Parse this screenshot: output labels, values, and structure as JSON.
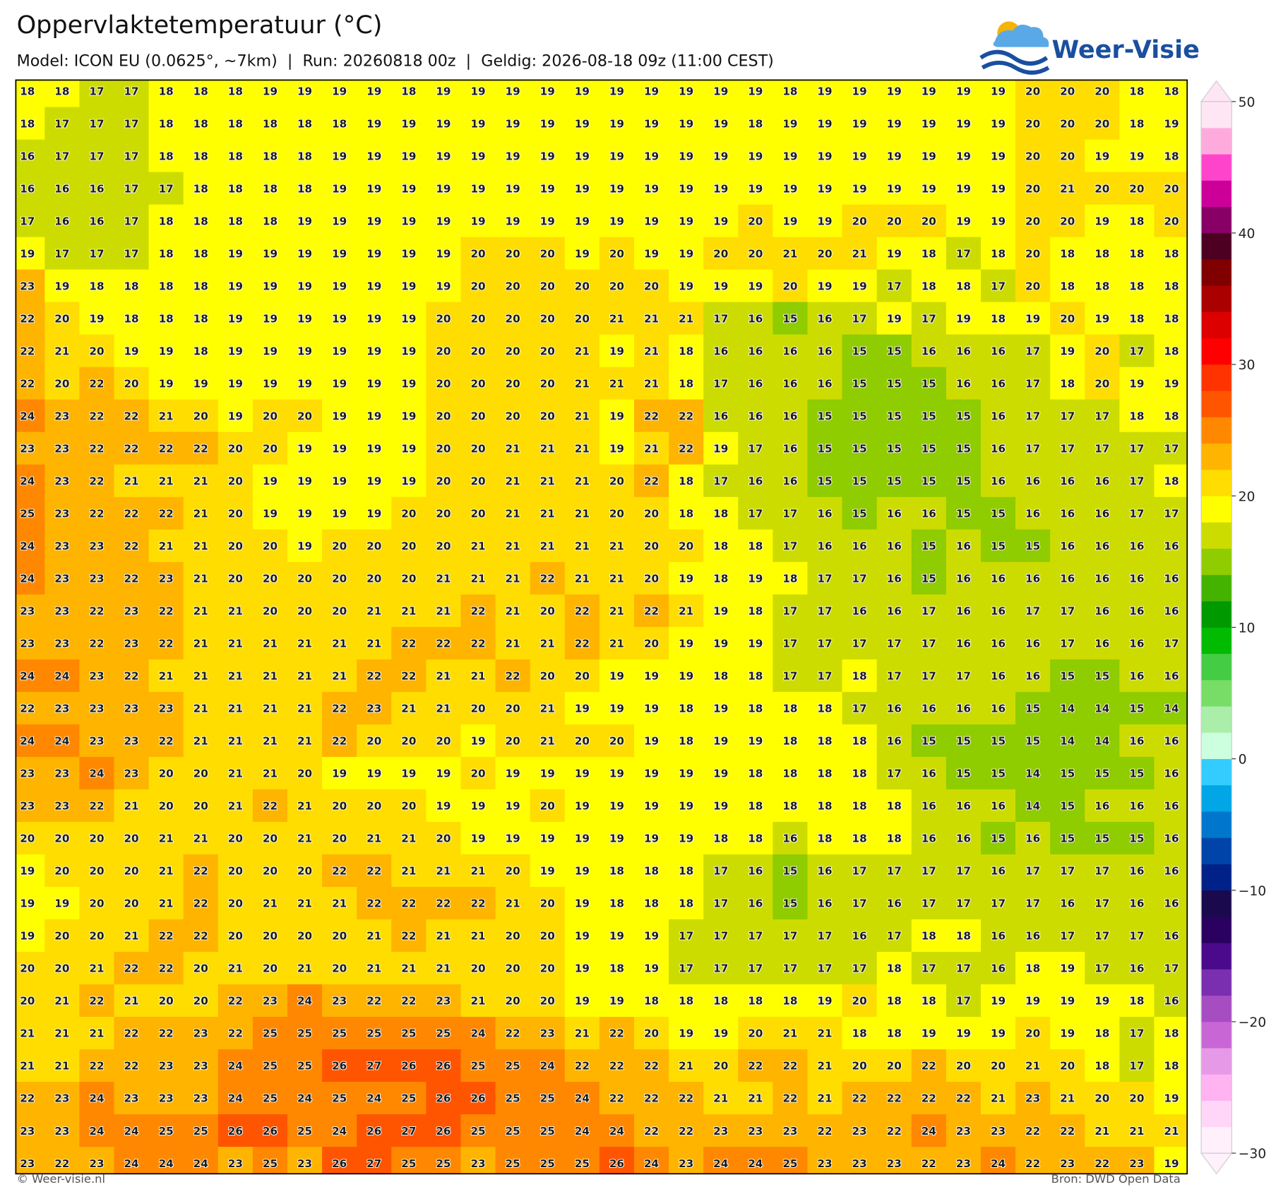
{
  "header": {
    "title": "Oppervlaktetemperatuur (°C)",
    "subtitle": "Model: ICON EU (0.0625°, ~7km)  |  Run: 20260818 00z  |  Geldig: 2026-08-18 09z (11:00 CEST)"
  },
  "logo": {
    "text": "Weer-Visie"
  },
  "grid": {
    "rows": [
      [
        18,
        18,
        17,
        17,
        18,
        18,
        18,
        19,
        19,
        19,
        19,
        18,
        19,
        19,
        19,
        19,
        19,
        19,
        19,
        19,
        19,
        19,
        18,
        19,
        19,
        19,
        19,
        19,
        19,
        20,
        20,
        20,
        18,
        18
      ],
      [
        18,
        17,
        17,
        17,
        18,
        18,
        18,
        18,
        18,
        18,
        19,
        19,
        19,
        19,
        19,
        19,
        19,
        19,
        19,
        19,
        19,
        18,
        19,
        19,
        19,
        19,
        19,
        19,
        19,
        20,
        20,
        20,
        18,
        19
      ],
      [
        16,
        17,
        17,
        17,
        18,
        18,
        18,
        18,
        18,
        19,
        19,
        19,
        19,
        19,
        19,
        19,
        19,
        19,
        19,
        19,
        19,
        19,
        19,
        19,
        19,
        19,
        19,
        19,
        19,
        20,
        20,
        19,
        19,
        18
      ],
      [
        16,
        16,
        16,
        17,
        17,
        18,
        18,
        18,
        18,
        19,
        19,
        19,
        19,
        19,
        19,
        19,
        19,
        19,
        19,
        19,
        19,
        19,
        19,
        19,
        19,
        19,
        19,
        19,
        19,
        20,
        21,
        20,
        20,
        20
      ],
      [
        17,
        16,
        16,
        17,
        18,
        18,
        18,
        18,
        19,
        19,
        19,
        19,
        19,
        19,
        19,
        19,
        19,
        19,
        19,
        19,
        19,
        20,
        19,
        19,
        20,
        20,
        20,
        19,
        19,
        20,
        20,
        19,
        18,
        20
      ],
      [
        19,
        17,
        17,
        17,
        18,
        18,
        19,
        19,
        19,
        19,
        19,
        19,
        19,
        20,
        20,
        20,
        19,
        20,
        19,
        19,
        20,
        20,
        21,
        20,
        21,
        19,
        18,
        17,
        18,
        20,
        18,
        18,
        18,
        18
      ],
      [
        23,
        19,
        18,
        18,
        18,
        18,
        19,
        19,
        19,
        19,
        19,
        19,
        19,
        20,
        20,
        20,
        20,
        20,
        20,
        19,
        19,
        19,
        20,
        19,
        19,
        17,
        18,
        18,
        17,
        20,
        18,
        18,
        18,
        18
      ],
      [
        22,
        20,
        19,
        18,
        18,
        18,
        19,
        19,
        19,
        19,
        19,
        19,
        20,
        20,
        20,
        20,
        20,
        21,
        21,
        21,
        17,
        16,
        15,
        16,
        17,
        19,
        17,
        19,
        18,
        19,
        20,
        19,
        18,
        18
      ],
      [
        22,
        21,
        20,
        19,
        19,
        18,
        19,
        19,
        19,
        19,
        19,
        19,
        20,
        20,
        20,
        20,
        21,
        19,
        21,
        18,
        16,
        16,
        16,
        16,
        15,
        15,
        16,
        16,
        16,
        17,
        19,
        20,
        17,
        18
      ],
      [
        22,
        20,
        22,
        20,
        19,
        19,
        19,
        19,
        19,
        19,
        19,
        19,
        20,
        20,
        20,
        20,
        21,
        21,
        21,
        18,
        17,
        16,
        16,
        16,
        15,
        15,
        15,
        16,
        16,
        17,
        18,
        20,
        19,
        19
      ],
      [
        24,
        23,
        22,
        22,
        21,
        20,
        19,
        20,
        20,
        19,
        19,
        19,
        20,
        20,
        20,
        20,
        21,
        19,
        22,
        22,
        16,
        16,
        16,
        15,
        15,
        15,
        15,
        15,
        16,
        17,
        17,
        17,
        18,
        18
      ],
      [
        23,
        23,
        22,
        22,
        22,
        22,
        20,
        20,
        19,
        19,
        19,
        19,
        20,
        20,
        21,
        21,
        21,
        19,
        21,
        22,
        19,
        17,
        16,
        15,
        15,
        15,
        15,
        15,
        16,
        17,
        17,
        17,
        17,
        17
      ],
      [
        24,
        23,
        22,
        21,
        21,
        21,
        20,
        19,
        19,
        19,
        19,
        19,
        20,
        20,
        21,
        21,
        21,
        20,
        22,
        18,
        17,
        16,
        16,
        15,
        15,
        15,
        15,
        15,
        16,
        16,
        16,
        16,
        17,
        18
      ],
      [
        25,
        23,
        22,
        22,
        22,
        21,
        20,
        19,
        19,
        19,
        19,
        20,
        20,
        20,
        21,
        21,
        21,
        20,
        20,
        18,
        18,
        17,
        17,
        16,
        15,
        16,
        16,
        15,
        15,
        16,
        16,
        16,
        17,
        17
      ],
      [
        24,
        23,
        23,
        22,
        21,
        21,
        20,
        20,
        19,
        20,
        20,
        20,
        20,
        21,
        21,
        21,
        21,
        21,
        20,
        20,
        18,
        18,
        17,
        16,
        16,
        16,
        15,
        16,
        15,
        15,
        16,
        16,
        16,
        16
      ],
      [
        24,
        23,
        23,
        22,
        23,
        21,
        20,
        20,
        20,
        20,
        20,
        20,
        21,
        21,
        21,
        22,
        21,
        21,
        20,
        19,
        18,
        19,
        18,
        17,
        17,
        16,
        15,
        16,
        16,
        16,
        16,
        16,
        16,
        16
      ],
      [
        23,
        23,
        22,
        23,
        22,
        21,
        21,
        20,
        20,
        20,
        21,
        21,
        21,
        22,
        21,
        20,
        22,
        21,
        22,
        21,
        19,
        18,
        17,
        17,
        16,
        16,
        17,
        16,
        16,
        17,
        17,
        16,
        16,
        16
      ],
      [
        23,
        23,
        22,
        23,
        22,
        21,
        21,
        21,
        21,
        21,
        21,
        22,
        22,
        22,
        21,
        21,
        22,
        21,
        20,
        19,
        19,
        19,
        17,
        17,
        17,
        17,
        17,
        16,
        16,
        16,
        17,
        16,
        16,
        17
      ],
      [
        24,
        24,
        23,
        22,
        21,
        21,
        21,
        21,
        21,
        21,
        22,
        22,
        21,
        21,
        22,
        20,
        20,
        19,
        19,
        19,
        18,
        18,
        17,
        17,
        18,
        17,
        17,
        17,
        16,
        16,
        15,
        15,
        16,
        16
      ],
      [
        22,
        23,
        23,
        23,
        23,
        21,
        21,
        21,
        21,
        22,
        23,
        21,
        21,
        20,
        20,
        21,
        19,
        19,
        19,
        18,
        19,
        18,
        18,
        18,
        17,
        16,
        16,
        16,
        16,
        15,
        14,
        14,
        15,
        14
      ],
      [
        24,
        24,
        23,
        23,
        22,
        21,
        21,
        21,
        21,
        22,
        20,
        20,
        20,
        19,
        20,
        21,
        20,
        20,
        19,
        18,
        19,
        19,
        18,
        18,
        18,
        16,
        15,
        15,
        15,
        15,
        14,
        14,
        16,
        16
      ],
      [
        23,
        23,
        24,
        23,
        20,
        20,
        21,
        21,
        20,
        19,
        19,
        19,
        19,
        20,
        19,
        19,
        19,
        19,
        19,
        19,
        19,
        18,
        18,
        18,
        18,
        17,
        16,
        15,
        15,
        14,
        15,
        15,
        15,
        16
      ],
      [
        23,
        23,
        22,
        21,
        20,
        20,
        21,
        22,
        21,
        20,
        20,
        20,
        19,
        19,
        19,
        20,
        19,
        19,
        19,
        19,
        19,
        18,
        18,
        18,
        18,
        18,
        16,
        16,
        16,
        14,
        15,
        16,
        16,
        16
      ],
      [
        20,
        20,
        20,
        20,
        21,
        21,
        20,
        20,
        21,
        20,
        21,
        21,
        20,
        19,
        19,
        19,
        19,
        19,
        19,
        19,
        18,
        18,
        16,
        18,
        18,
        18,
        16,
        16,
        15,
        16,
        15,
        15,
        15,
        16
      ],
      [
        19,
        20,
        20,
        20,
        21,
        22,
        20,
        20,
        20,
        22,
        22,
        21,
        21,
        21,
        20,
        19,
        19,
        18,
        18,
        18,
        17,
        16,
        15,
        16,
        17,
        17,
        17,
        17,
        16,
        17,
        17,
        17,
        16,
        16
      ],
      [
        19,
        19,
        20,
        20,
        21,
        22,
        20,
        21,
        21,
        21,
        22,
        22,
        22,
        22,
        21,
        20,
        19,
        18,
        18,
        18,
        17,
        16,
        15,
        16,
        17,
        16,
        17,
        17,
        17,
        17,
        16,
        17,
        16,
        16
      ],
      [
        19,
        20,
        20,
        21,
        22,
        22,
        20,
        20,
        20,
        20,
        21,
        22,
        21,
        21,
        20,
        20,
        19,
        19,
        19,
        17,
        17,
        17,
        17,
        17,
        16,
        17,
        18,
        18,
        16,
        16,
        17,
        17,
        17,
        16
      ],
      [
        20,
        20,
        21,
        22,
        22,
        20,
        21,
        20,
        21,
        20,
        21,
        21,
        21,
        20,
        20,
        20,
        19,
        18,
        19,
        17,
        17,
        17,
        17,
        17,
        17,
        18,
        17,
        17,
        16,
        18,
        19,
        17,
        16,
        17
      ],
      [
        20,
        21,
        22,
        21,
        20,
        20,
        22,
        23,
        24,
        23,
        22,
        22,
        23,
        21,
        20,
        20,
        19,
        19,
        18,
        18,
        18,
        18,
        18,
        19,
        20,
        18,
        18,
        17,
        19,
        19,
        19,
        19,
        18,
        16
      ],
      [
        21,
        21,
        21,
        22,
        22,
        23,
        22,
        25,
        25,
        25,
        25,
        25,
        25,
        24,
        22,
        23,
        21,
        22,
        20,
        19,
        19,
        20,
        21,
        21,
        18,
        18,
        19,
        19,
        19,
        20,
        19,
        18,
        17,
        18
      ],
      [
        21,
        21,
        22,
        22,
        23,
        23,
        24,
        25,
        25,
        26,
        27,
        26,
        26,
        25,
        25,
        24,
        22,
        22,
        22,
        21,
        20,
        22,
        22,
        21,
        20,
        20,
        22,
        20,
        20,
        21,
        20,
        18,
        17,
        18
      ],
      [
        22,
        23,
        24,
        23,
        23,
        23,
        24,
        25,
        24,
        25,
        24,
        25,
        26,
        26,
        25,
        25,
        24,
        22,
        22,
        22,
        21,
        21,
        22,
        21,
        22,
        22,
        22,
        22,
        21,
        23,
        21,
        20,
        20,
        19
      ],
      [
        23,
        23,
        24,
        24,
        25,
        25,
        26,
        26,
        25,
        24,
        26,
        27,
        26,
        25,
        25,
        25,
        24,
        24,
        22,
        22,
        23,
        23,
        23,
        22,
        23,
        22,
        24,
        23,
        23,
        22,
        22,
        21,
        21,
        21
      ],
      [
        23,
        22,
        23,
        24,
        24,
        24,
        23,
        25,
        23,
        26,
        27,
        25,
        25,
        23,
        25,
        25,
        25,
        26,
        24,
        23,
        24,
        24,
        25,
        23,
        23,
        23,
        22,
        23,
        24,
        22,
        23,
        22,
        23,
        19
      ]
    ]
  },
  "colorbar": {
    "lim": [
      -30,
      50
    ],
    "ticks": [
      50,
      40,
      30,
      20,
      10,
      0,
      {
        "value": -10,
        "label": "−10"
      },
      {
        "value": -20,
        "label": "−20"
      },
      {
        "value": -30,
        "label": "−30"
      }
    ],
    "colors": [
      "#fff0fc",
      "#ffd6f7",
      "#ffb3f0",
      "#e699e6",
      "#c966d6",
      "#a64dc2",
      "#7a2eb0",
      "#4b0a8c",
      "#2a0060",
      "#1a0a4d",
      "#002288",
      "#0044aa",
      "#0077cc",
      "#00a6e6",
      "#33ccff",
      "#ccffdd",
      "#aaeeaa",
      "#77dd66",
      "#44cc44",
      "#00bb00",
      "#009900",
      "#44b300",
      "#8fcc00",
      "#cddc00",
      "#ffff00",
      "#ffdd00",
      "#ffb400",
      "#ff8800",
      "#ff5500",
      "#ff3300",
      "#ff0000",
      "#dd0000",
      "#aa0000",
      "#800000",
      "#4d0022",
      "#880066",
      "#cc0099",
      "#ff44cc",
      "#ffaadd",
      "#ffe6f5"
    ]
  },
  "footer": {
    "left": "© Weer-visie.nl",
    "right": "Bron: DWD Open Data"
  }
}
